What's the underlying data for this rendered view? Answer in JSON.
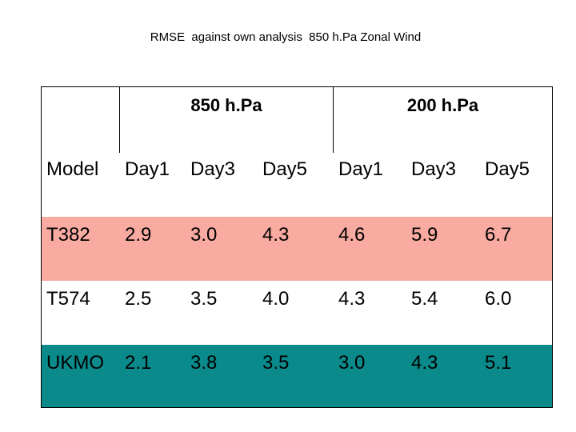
{
  "title": "RMSE  against own analysis  850 h.Pa Zonal Wind",
  "table": {
    "group_headers": [
      "850 h.Pa",
      "200 h.Pa"
    ],
    "columns": [
      "Model",
      "Day1",
      "Day3",
      "Day5",
      "Day1",
      "Day3",
      "Day5"
    ],
    "rows": [
      {
        "model": "T382",
        "values": [
          "2.9",
          "3.0",
          "4.3",
          "4.6",
          "5.9",
          "6.7"
        ],
        "color": "#f9aba1"
      },
      {
        "model": "T574",
        "values": [
          "2.5",
          "3.5",
          "4.0",
          "4.3",
          "5.4",
          "6.0"
        ],
        "color": "#ffffff"
      },
      {
        "model": "UKMO",
        "values": [
          "2.1",
          "3.8",
          "3.5",
          "3.0",
          "4.3",
          "5.1"
        ],
        "color": "#0a8a8a"
      }
    ]
  }
}
